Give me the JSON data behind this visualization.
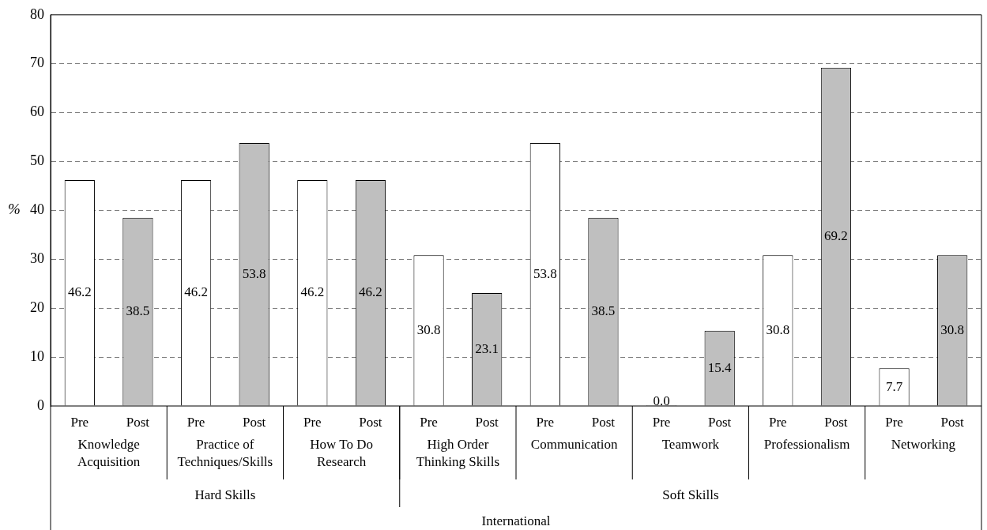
{
  "chart_data": {
    "type": "bar",
    "ylabel": "%",
    "xlabel": "International",
    "categories": [
      "Knowledge Acquisition",
      "Practice of Techniques/Skills",
      "How To Do Research",
      "High Order Thinking Skills",
      "Communication",
      "Teamwork",
      "Professionalism",
      "Networking"
    ],
    "series": [
      {
        "name": "Pre",
        "color": "#ffffff",
        "values": [
          46.2,
          46.2,
          46.2,
          30.8,
          53.8,
          0.0,
          30.8,
          7.7
        ],
        "value_labels": [
          "46.2",
          "46.2",
          "46.2",
          "30.8",
          "53.8",
          "0.0",
          "30.8",
          "7.7"
        ]
      },
      {
        "name": "Post",
        "color": "#bfbfbf",
        "values": [
          38.5,
          53.8,
          46.2,
          23.1,
          38.5,
          15.4,
          69.2,
          30.8
        ],
        "value_labels": [
          "38.5",
          "53.8",
          "46.2",
          "23.1",
          "38.5",
          "15.4",
          "69.2",
          "30.8"
        ]
      }
    ],
    "annotations": [
      "Hard Skills",
      "Soft Skills"
    ],
    "ylim": [
      0,
      80
    ],
    "yticks": [
      0,
      10,
      20,
      30,
      40,
      50,
      60,
      70,
      80
    ],
    "grid": "y",
    "line_style": "dashed",
    "legend": false
  }
}
